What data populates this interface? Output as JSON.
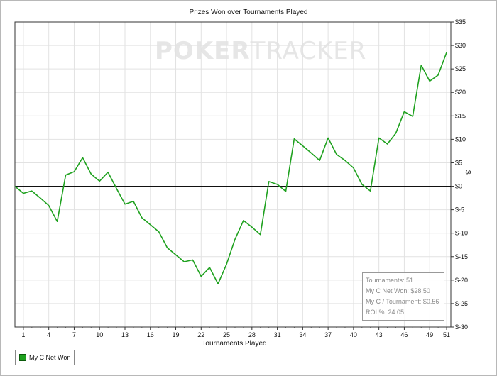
{
  "chart_data": {
    "type": "line",
    "title": "Prizes Won over Tournaments Played",
    "xlabel": "Tournaments Played",
    "ylabel": "$",
    "watermark": {
      "bold": "POKER",
      "light": "TRACKER"
    },
    "xlim": [
      0,
      51.5
    ],
    "ylim": [
      -30,
      35
    ],
    "xticks": [
      1,
      4,
      7,
      10,
      13,
      16,
      19,
      22,
      25,
      28,
      31,
      34,
      37,
      40,
      43,
      46,
      49,
      51
    ],
    "yticks": [
      35,
      30,
      25,
      20,
      15,
      10,
      5,
      0,
      -5,
      -10,
      -15,
      -20,
      -25,
      -30
    ],
    "ytick_labels": [
      "$35",
      "$30",
      "$25",
      "$20",
      "$15",
      "$10",
      "$5",
      "$0",
      "$-5",
      "$-10",
      "$-15",
      "$-20",
      "$-25",
      "$-30"
    ],
    "grid": true,
    "legend_position": "bottom-left",
    "series": [
      {
        "name": "My C Net Won",
        "color": "#1fa11f",
        "x": [
          0,
          1,
          2,
          3,
          4,
          5,
          6,
          7,
          8,
          9,
          10,
          11,
          12,
          13,
          14,
          15,
          16,
          17,
          18,
          19,
          20,
          21,
          22,
          23,
          24,
          25,
          26,
          27,
          28,
          29,
          30,
          31,
          32,
          33,
          34,
          35,
          36,
          37,
          38,
          39,
          40,
          41,
          42,
          43,
          44,
          45,
          46,
          47,
          48,
          49,
          50,
          51
        ],
        "y": [
          0,
          -1.5,
          -1,
          -2.5,
          -4.1,
          -7.5,
          2.4,
          3.1,
          6.1,
          2.6,
          1.1,
          3,
          -0.5,
          -3.8,
          -3.2,
          -6.7,
          -8.2,
          -9.7,
          -13.1,
          -14.6,
          -16.1,
          -15.7,
          -19.2,
          -17.3,
          -20.8,
          -16.6,
          -11.3,
          -7.3,
          -8.7,
          -10.3,
          1,
          0.4,
          -1.1,
          10.1,
          8.6,
          7.1,
          5.5,
          10.3,
          6.8,
          5.5,
          3.9,
          0.4,
          -1,
          10.3,
          9,
          11.3,
          15.9,
          14.9,
          25.8,
          22.4,
          23.7,
          28.5
        ]
      }
    ],
    "stats_box": [
      "Tournaments: 51",
      "My C Net Won: $28.50",
      "My C / Tournament: $0.56",
      "ROI %: 24.05"
    ]
  }
}
